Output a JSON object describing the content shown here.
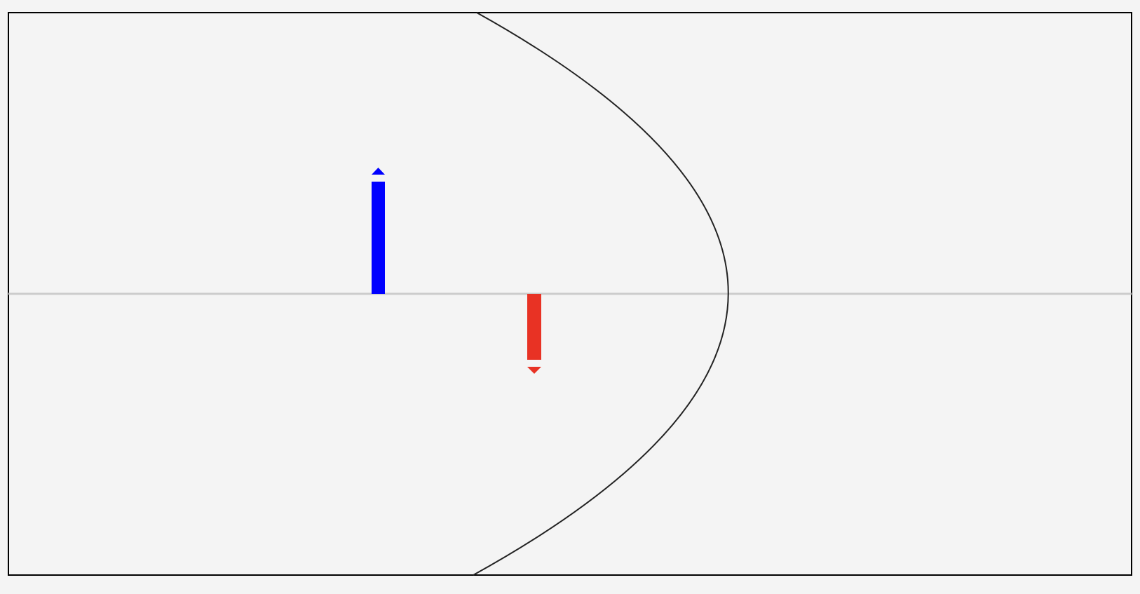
{
  "colors": {
    "background": "#f4f4f4",
    "frame": "#000000",
    "axis": "#cccccc",
    "curve": "#222222",
    "positive_arrow": "#0000ff",
    "negative_arrow": "#e83224"
  },
  "diagram": {
    "curve_shape": "parabola opening to the left",
    "arrows": [
      {
        "id": "positive",
        "direction": "up",
        "color": "#0000ff"
      },
      {
        "id": "negative",
        "direction": "down",
        "color": "#e83224"
      }
    ]
  }
}
